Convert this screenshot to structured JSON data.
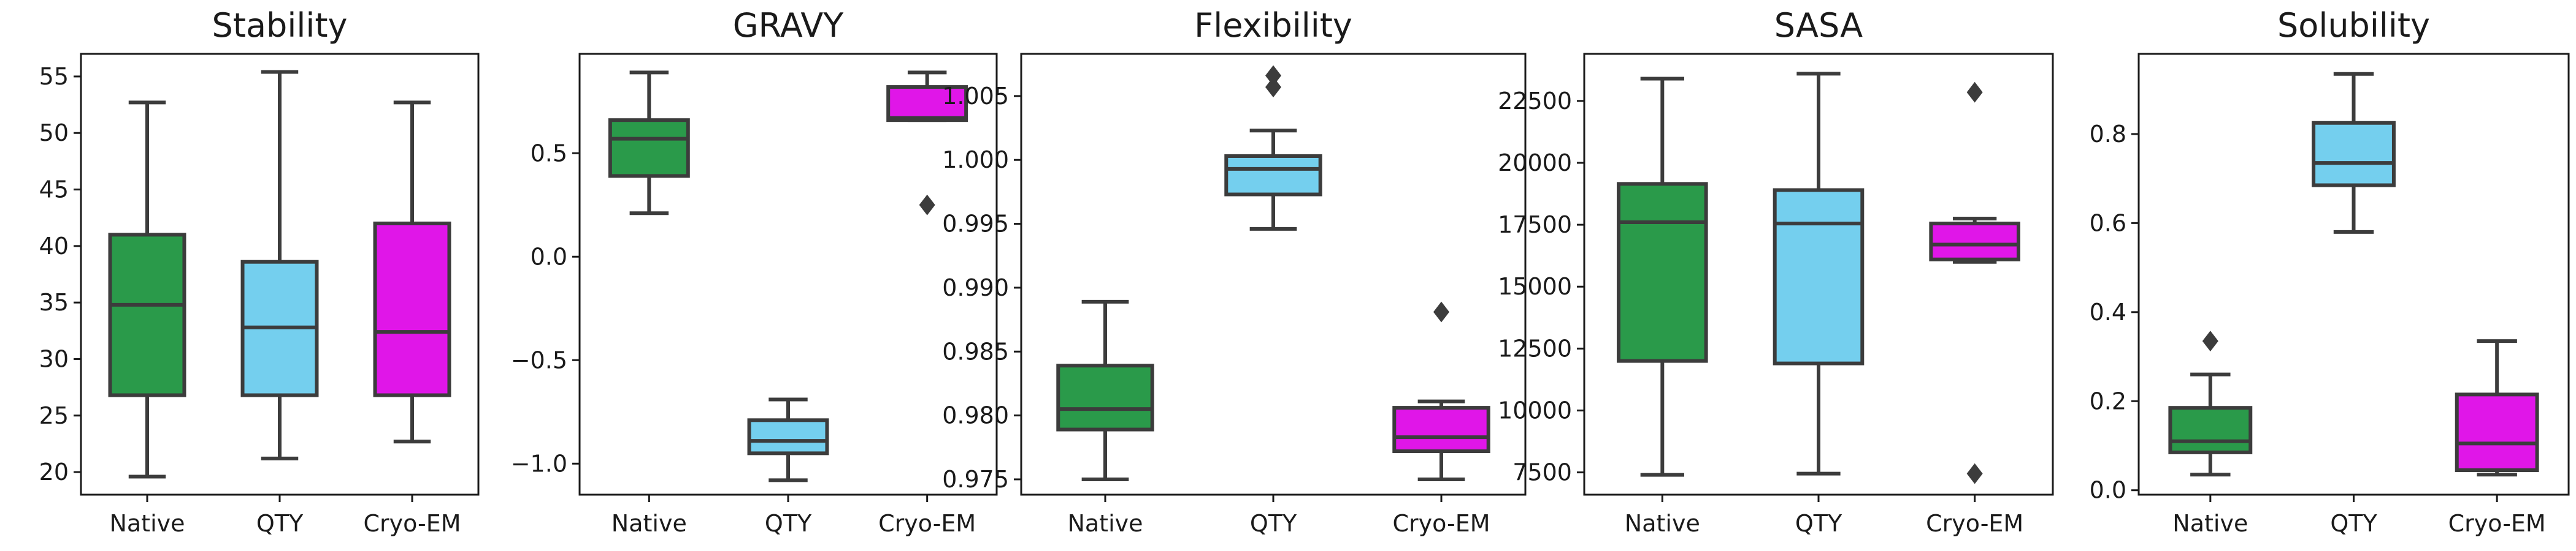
{
  "chart_data": [
    {
      "type": "box",
      "title": "Stability",
      "categories": [
        "Native",
        "QTY",
        "Cryo-EM"
      ],
      "colors": [
        "#2a9a4a",
        "#74cfee",
        "#e016e8"
      ],
      "ylim": [
        18,
        57
      ],
      "yticks": [
        20,
        25,
        30,
        35,
        40,
        45,
        50,
        55
      ],
      "ytick_labels": [
        "20",
        "25",
        "30",
        "35",
        "40",
        "45",
        "50",
        "55"
      ],
      "boxes": [
        {
          "whislo": 19.6,
          "q1": 26.8,
          "med": 34.8,
          "q3": 41.0,
          "whishi": 52.7,
          "fliers": []
        },
        {
          "whislo": 21.2,
          "q1": 26.8,
          "med": 32.8,
          "q3": 38.6,
          "whishi": 55.4,
          "fliers": []
        },
        {
          "whislo": 22.7,
          "q1": 26.8,
          "med": 32.4,
          "q3": 42.0,
          "whishi": 52.7,
          "fliers": []
        }
      ]
    },
    {
      "type": "box",
      "title": "GRAVY",
      "categories": [
        "Native",
        "QTY",
        "Cryo-EM"
      ],
      "colors": [
        "#2a9a4a",
        "#74cfee",
        "#e016e8"
      ],
      "ylim": [
        -1.15,
        0.98
      ],
      "yticks": [
        -1.0,
        -0.5,
        0.0,
        0.5
      ],
      "ytick_labels": [
        "−1.0",
        "−0.5",
        "0.0",
        "0.5"
      ],
      "boxes": [
        {
          "whislo": 0.21,
          "q1": 0.39,
          "med": 0.57,
          "q3": 0.66,
          "whishi": 0.89,
          "fliers": []
        },
        {
          "whislo": -1.08,
          "q1": -0.95,
          "med": -0.89,
          "q3": -0.79,
          "whishi": -0.69,
          "fliers": []
        },
        {
          "whislo": 0.66,
          "q1": 0.66,
          "med": 0.67,
          "q3": 0.82,
          "whishi": 0.89,
          "fliers": [
            0.25
          ]
        }
      ]
    },
    {
      "type": "box",
      "title": "Flexibility",
      "categories": [
        "Native",
        "QTY",
        "Cryo-EM"
      ],
      "colors": [
        "#2a9a4a",
        "#74cfee",
        "#e016e8"
      ],
      "ylim": [
        0.9738,
        1.0083
      ],
      "yticks": [
        0.975,
        0.98,
        0.985,
        0.99,
        0.995,
        1.0,
        1.005
      ],
      "ytick_labels": [
        "0.975",
        "0.980",
        "0.985",
        "0.990",
        "0.995",
        "1.000",
        "1.005"
      ],
      "boxes": [
        {
          "whislo": 0.975,
          "q1": 0.9789,
          "med": 0.9805,
          "q3": 0.9839,
          "whishi": 0.9889,
          "fliers": []
        },
        {
          "whislo": 0.9946,
          "q1": 0.9973,
          "med": 0.9993,
          "q3": 1.0003,
          "whishi": 1.0023,
          "fliers": [
            1.0057,
            1.0066
          ]
        },
        {
          "whislo": 0.975,
          "q1": 0.9772,
          "med": 0.9783,
          "q3": 0.9806,
          "whishi": 0.9811,
          "fliers": [
            0.9881
          ]
        }
      ]
    },
    {
      "type": "box",
      "title": "SASA",
      "categories": [
        "Native",
        "QTY",
        "Cryo-EM"
      ],
      "colors": [
        "#2a9a4a",
        "#74cfee",
        "#e016e8"
      ],
      "ylim": [
        6600,
        24400
      ],
      "yticks": [
        7500,
        10000,
        12500,
        15000,
        17500,
        20000,
        22500
      ],
      "ytick_labels": [
        "7500",
        "10000",
        "12500",
        "15000",
        "17500",
        "20000",
        "22500"
      ],
      "boxes": [
        {
          "whislo": 7400,
          "q1": 12000,
          "med": 17600,
          "q3": 19150,
          "whishi": 23400,
          "fliers": []
        },
        {
          "whislo": 7450,
          "q1": 11900,
          "med": 17550,
          "q3": 18900,
          "whishi": 23600,
          "fliers": []
        },
        {
          "whislo": 16000,
          "q1": 16100,
          "med": 16700,
          "q3": 17550,
          "whishi": 17750,
          "fliers": [
            22850,
            7450
          ]
        }
      ]
    },
    {
      "type": "box",
      "title": "Solubility",
      "categories": [
        "Native",
        "QTY",
        "Cryo-EM"
      ],
      "colors": [
        "#2a9a4a",
        "#74cfee",
        "#e016e8"
      ],
      "ylim": [
        -0.01,
        0.98
      ],
      "yticks": [
        0.0,
        0.2,
        0.4,
        0.6,
        0.8
      ],
      "ytick_labels": [
        "0.0",
        "0.2",
        "0.4",
        "0.6",
        "0.8"
      ],
      "boxes": [
        {
          "whislo": 0.035,
          "q1": 0.085,
          "med": 0.11,
          "q3": 0.185,
          "whishi": 0.26,
          "fliers": [
            0.335
          ]
        },
        {
          "whislo": 0.58,
          "q1": 0.685,
          "med": 0.735,
          "q3": 0.825,
          "whishi": 0.935,
          "fliers": []
        },
        {
          "whislo": 0.035,
          "q1": 0.045,
          "med": 0.105,
          "q3": 0.215,
          "whishi": 0.335,
          "fliers": []
        }
      ]
    }
  ]
}
